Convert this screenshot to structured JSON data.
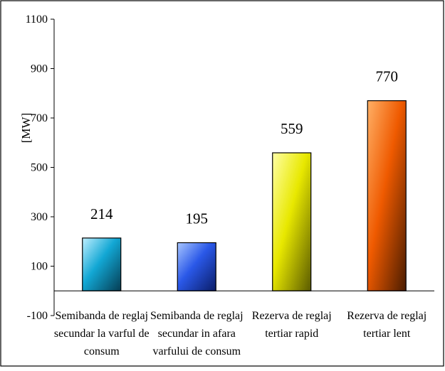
{
  "chart_data": {
    "type": "bar",
    "categories": [
      [
        "Semibanda de reglaj",
        "secundar la varful de",
        "consum"
      ],
      [
        "Semibanda de reglaj",
        "secundar in afara",
        "varfului de consum"
      ],
      [
        "Rezerva de reglaj",
        "tertiar rapid"
      ],
      [
        "Rezerva de reglaj",
        "tertiar lent"
      ]
    ],
    "values": [
      214,
      195,
      559,
      770
    ],
    "data_labels": [
      "214",
      "195",
      "559",
      "770"
    ],
    "ylabel": "[MW]",
    "ylim": [
      -100,
      1100
    ],
    "yticks": [
      -100,
      100,
      300,
      500,
      700,
      900,
      1100
    ],
    "ytick_labels": [
      "-100",
      "100",
      "300",
      "500",
      "700",
      "900",
      "1100"
    ],
    "grid": false,
    "legend": "none",
    "bar_colors": [
      [
        "#bfefff",
        "#12a7d4",
        "#063c52"
      ],
      [
        "#a8c6ff",
        "#2a58e8",
        "#0a1c66"
      ],
      [
        "#ffffa6",
        "#e8e800",
        "#5a5a00"
      ],
      [
        "#ffb066",
        "#ef5a00",
        "#4a1c00"
      ]
    ]
  }
}
